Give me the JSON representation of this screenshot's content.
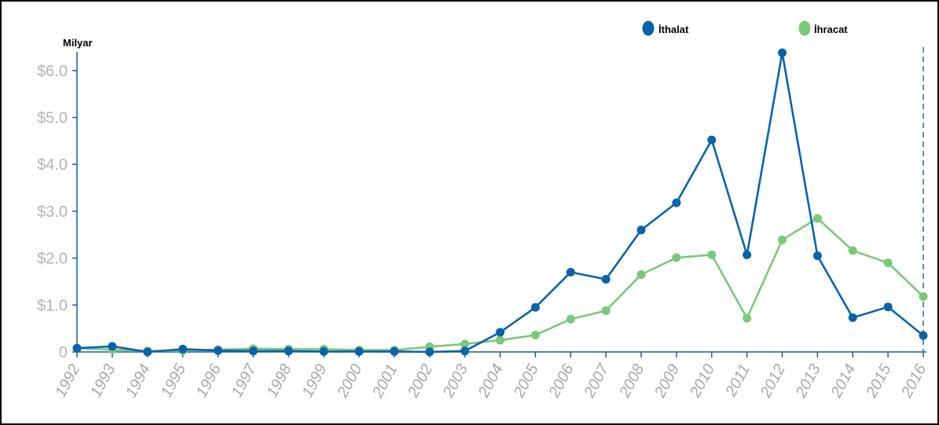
{
  "chart_data": {
    "type": "line",
    "unit_label": "Milyar",
    "x": [
      "1992",
      "1993",
      "1994",
      "1995",
      "1996",
      "1997",
      "1998",
      "1999",
      "2000",
      "2001",
      "2002",
      "2003",
      "2004",
      "2005",
      "2006",
      "2007",
      "2008",
      "2009",
      "2010",
      "2011",
      "2012",
      "2013",
      "2014",
      "2015",
      "2016"
    ],
    "y_ticks": [
      "0",
      "$1.0",
      "$2.0",
      "$3.0",
      "$4.0",
      "$5.0",
      "$6.0"
    ],
    "ylim": [
      0,
      6.5
    ],
    "legend_position": "top-right",
    "grid": false,
    "series": [
      {
        "name": "İthalat",
        "color": "#0b63aa",
        "values": [
          0.08,
          0.12,
          0.0,
          0.06,
          0.03,
          0.02,
          0.02,
          0.01,
          0.01,
          0.01,
          0.0,
          0.02,
          0.42,
          0.95,
          1.7,
          1.55,
          2.6,
          3.18,
          4.52,
          2.07,
          6.38,
          2.05,
          0.73,
          0.96,
          0.35
        ]
      },
      {
        "name": "İhracat",
        "color": "#79c97a",
        "values": [
          0.08,
          0.05,
          0.02,
          0.03,
          0.05,
          0.07,
          0.06,
          0.06,
          0.04,
          0.04,
          0.11,
          0.17,
          0.25,
          0.36,
          0.7,
          0.88,
          1.65,
          2.01,
          2.07,
          0.72,
          2.39,
          2.85,
          2.16,
          1.9,
          1.18
        ]
      }
    ]
  }
}
